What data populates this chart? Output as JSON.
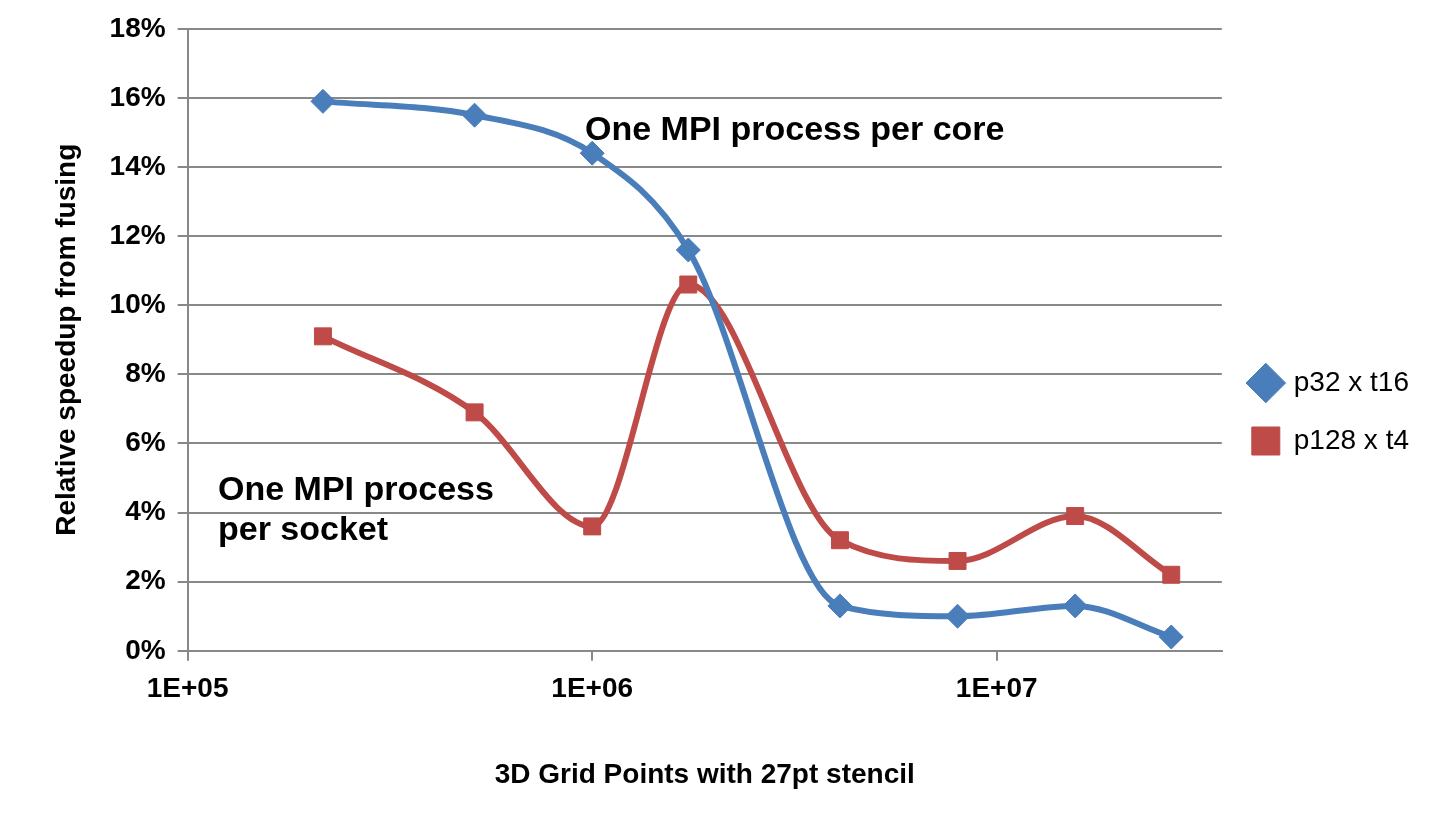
{
  "chart_data": {
    "type": "line",
    "xlabel": "3D Grid Points with 27pt stencil",
    "ylabel": "Relative speedup from fusing",
    "x": [
      216000,
      512000,
      1000000,
      1728000,
      4096000,
      8000000,
      15625000,
      27000000
    ],
    "series": [
      {
        "name": "p32 x t16",
        "color": "#4a7ebb",
        "marker": "diamond",
        "values": [
          15.9,
          15.5,
          14.4,
          11.6,
          1.3,
          1.0,
          1.3,
          0.4
        ]
      },
      {
        "name": "p128 x t4",
        "color": "#be4b48",
        "marker": "square",
        "values": [
          9.1,
          6.9,
          3.6,
          10.6,
          3.2,
          2.6,
          3.9,
          2.2
        ]
      }
    ],
    "log": "x",
    "xlim": [
      100000,
      36000000
    ],
    "xticks": [
      {
        "value": 100000,
        "label": "1E+05"
      },
      {
        "value": 1000000,
        "label": "1E+06"
      },
      {
        "value": 10000000,
        "label": "1E+07"
      }
    ],
    "ylim": [
      0,
      18
    ],
    "yticks": [
      {
        "value": 0,
        "label": "0%"
      },
      {
        "value": 2,
        "label": "2%"
      },
      {
        "value": 4,
        "label": "4%"
      },
      {
        "value": 6,
        "label": "6%"
      },
      {
        "value": 8,
        "label": "8%"
      },
      {
        "value": 10,
        "label": "10%"
      },
      {
        "value": 12,
        "label": "12%"
      },
      {
        "value": 14,
        "label": "14%"
      },
      {
        "value": 16,
        "label": "16%"
      },
      {
        "value": 18,
        "label": "18%"
      }
    ],
    "grid": "y",
    "legend": "right",
    "line_style": "solid",
    "annotations": [
      "One MPI process per core",
      "One MPI process per socket"
    ]
  }
}
